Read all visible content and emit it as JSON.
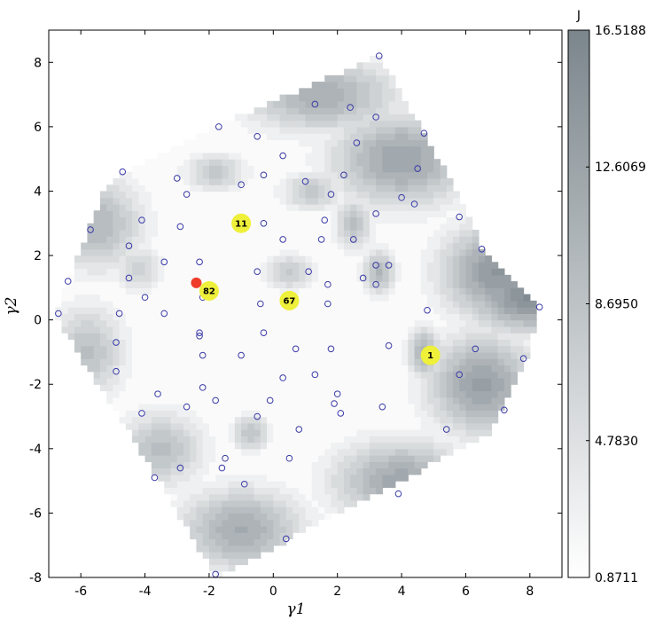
{
  "chart_data": {
    "type": "contour",
    "xlabel": "γ1",
    "ylabel": "γ2",
    "xlim": [
      -7,
      9
    ],
    "ylim": [
      -8,
      9
    ],
    "xticks": [
      -6,
      -4,
      -2,
      0,
      2,
      4,
      6,
      8
    ],
    "yticks": [
      -8,
      -6,
      -4,
      -2,
      0,
      2,
      4,
      6,
      8
    ],
    "grid": false,
    "colorbar": {
      "title": "J",
      "min": 0.8711,
      "max": 16.5188,
      "ticks": [
        "16.5188",
        "12.6069",
        "8.6950",
        "4.7830",
        "0.8711"
      ],
      "tick_values": [
        16.5188,
        12.6069,
        8.695,
        4.783,
        0.8711
      ],
      "color_low": "#ffffff",
      "color_high": "#7b868c"
    },
    "domain_hull": [
      [
        -6.8,
        0.2
      ],
      [
        -6.4,
        1.2
      ],
      [
        -5.2,
        4.2
      ],
      [
        -4.7,
        4.6
      ],
      [
        -1.8,
        6.0
      ],
      [
        3.3,
        8.2
      ],
      [
        4.7,
        5.8
      ],
      [
        6.0,
        3.5
      ],
      [
        6.5,
        2.2
      ],
      [
        8.3,
        0.4
      ],
      [
        7.9,
        -1.2
      ],
      [
        6.8,
        -3.5
      ],
      [
        -1.8,
        -8.0
      ],
      [
        -3.6,
        -4.9
      ],
      [
        -6.8,
        0.1
      ]
    ],
    "samples": [
      [
        3.3,
        8.2
      ],
      [
        1.3,
        6.7
      ],
      [
        2.4,
        6.6
      ],
      [
        3.2,
        6.3
      ],
      [
        -1.7,
        6.0
      ],
      [
        4.7,
        5.8
      ],
      [
        -0.5,
        5.7
      ],
      [
        2.6,
        5.5
      ],
      [
        0.3,
        5.1
      ],
      [
        4.5,
        4.7
      ],
      [
        -4.7,
        4.6
      ],
      [
        -0.3,
        4.5
      ],
      [
        2.2,
        4.5
      ],
      [
        1.0,
        4.3
      ],
      [
        -3.0,
        4.4
      ],
      [
        -1.0,
        4.2
      ],
      [
        -2.7,
        3.9
      ],
      [
        1.8,
        3.9
      ],
      [
        4.0,
        3.8
      ],
      [
        4.4,
        3.6
      ],
      [
        3.2,
        3.3
      ],
      [
        5.8,
        3.2
      ],
      [
        -4.1,
        3.1
      ],
      [
        1.6,
        3.1
      ],
      [
        -0.3,
        3.0
      ],
      [
        -5.7,
        2.8
      ],
      [
        -2.9,
        2.9
      ],
      [
        2.5,
        2.5
      ],
      [
        0.3,
        2.5
      ],
      [
        1.5,
        2.5
      ],
      [
        -4.5,
        2.3
      ],
      [
        6.5,
        2.2
      ],
      [
        -3.4,
        1.8
      ],
      [
        -2.3,
        1.8
      ],
      [
        3.2,
        1.7
      ],
      [
        3.6,
        1.7
      ],
      [
        -0.5,
        1.5
      ],
      [
        1.1,
        1.5
      ],
      [
        2.8,
        1.3
      ],
      [
        -6.4,
        1.2
      ],
      [
        -4.5,
        1.3
      ],
      [
        1.7,
        1.1
      ],
      [
        3.2,
        1.1
      ],
      [
        -4.0,
        0.7
      ],
      [
        -2.2,
        0.7
      ],
      [
        -0.4,
        0.5
      ],
      [
        1.7,
        0.5
      ],
      [
        4.8,
        0.3
      ],
      [
        8.3,
        0.4
      ],
      [
        -6.7,
        0.2
      ],
      [
        -4.8,
        0.2
      ],
      [
        -3.4,
        0.2
      ],
      [
        -2.3,
        -0.4
      ],
      [
        -2.3,
        -0.5
      ],
      [
        -0.3,
        -0.4
      ],
      [
        -4.9,
        -0.7
      ],
      [
        3.6,
        -0.8
      ],
      [
        0.7,
        -0.9
      ],
      [
        1.8,
        -0.9
      ],
      [
        6.3,
        -0.9
      ],
      [
        -2.2,
        -1.1
      ],
      [
        -1.0,
        -1.1
      ],
      [
        7.8,
        -1.2
      ],
      [
        -4.9,
        -1.6
      ],
      [
        1.3,
        -1.7
      ],
      [
        5.8,
        -1.7
      ],
      [
        0.3,
        -1.8
      ],
      [
        -2.2,
        -2.1
      ],
      [
        -3.6,
        -2.3
      ],
      [
        2.0,
        -2.3
      ],
      [
        -0.1,
        -2.5
      ],
      [
        -1.8,
        -2.5
      ],
      [
        1.9,
        -2.6
      ],
      [
        -2.7,
        -2.7
      ],
      [
        3.4,
        -2.7
      ],
      [
        7.2,
        -2.8
      ],
      [
        -4.1,
        -2.9
      ],
      [
        2.1,
        -2.9
      ],
      [
        -0.5,
        -3.0
      ],
      [
        0.8,
        -3.4
      ],
      [
        5.4,
        -3.4
      ],
      [
        0.5,
        -4.3
      ],
      [
        -1.5,
        -4.3
      ],
      [
        -2.9,
        -4.6
      ],
      [
        -1.6,
        -4.6
      ],
      [
        -3.7,
        -4.9
      ],
      [
        -0.9,
        -5.1
      ],
      [
        3.9,
        -5.4
      ],
      [
        0.4,
        -6.8
      ],
      [
        -1.8,
        -7.9
      ]
    ],
    "basins": [
      [
        8.0,
        0.8,
        15.5,
        2.0,
        1.2
      ],
      [
        7.0,
        1.5,
        14.0,
        1.8,
        1.5
      ],
      [
        6.5,
        -2.0,
        13.0,
        1.7,
        1.6
      ],
      [
        4.0,
        5.0,
        12.5,
        2.2,
        1.5
      ],
      [
        4.0,
        -5.0,
        12.0,
        2.2,
        1.3
      ],
      [
        1.5,
        7.0,
        11.0,
        2.5,
        1.2
      ],
      [
        -1.0,
        -6.5,
        11.5,
        2.0,
        1.3
      ],
      [
        -5.5,
        3.0,
        10.0,
        1.5,
        1.5
      ],
      [
        -5.8,
        -1.0,
        9.0,
        1.2,
        1.5
      ],
      [
        -3.5,
        -4.0,
        9.0,
        1.4,
        1.2
      ],
      [
        4.7,
        -1.0,
        11.0,
        0.5,
        0.8
      ],
      [
        3.3,
        1.5,
        10.0,
        0.5,
        0.7
      ],
      [
        -0.7,
        -3.5,
        8.5,
        0.6,
        0.6
      ],
      [
        2.5,
        3.0,
        9.0,
        0.6,
        0.8
      ],
      [
        0.5,
        1.5,
        7.5,
        0.8,
        0.6
      ],
      [
        1.2,
        4.0,
        8.0,
        1.0,
        0.6
      ],
      [
        -1.8,
        4.6,
        8.0,
        1.0,
        0.6
      ],
      [
        -4.2,
        1.6,
        7.0,
        0.8,
        0.7
      ]
    ],
    "base_level": 1.5,
    "min_marker": {
      "x": -2.4,
      "y": 1.15,
      "color": "#ee3c28"
    },
    "labeled_points": [
      {
        "label": "11",
        "x": -1.0,
        "y": 3.0
      },
      {
        "label": "82",
        "x": -2.0,
        "y": 0.9
      },
      {
        "label": "67",
        "x": 0.5,
        "y": 0.6
      },
      {
        "label": "1",
        "x": 4.9,
        "y": -1.1
      }
    ],
    "colors": {
      "sample_marker": "#3a3aa8",
      "label_marker": "#eef03a",
      "frame": "#000000"
    }
  }
}
